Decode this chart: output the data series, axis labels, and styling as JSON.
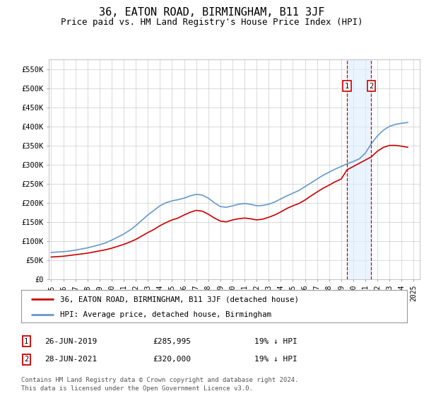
{
  "title": "36, EATON ROAD, BIRMINGHAM, B11 3JF",
  "subtitle": "Price paid vs. HM Land Registry's House Price Index (HPI)",
  "title_fontsize": 11,
  "subtitle_fontsize": 9,
  "ylim": [
    0,
    575000
  ],
  "yticks": [
    0,
    50000,
    100000,
    150000,
    200000,
    250000,
    300000,
    350000,
    400000,
    450000,
    500000,
    550000
  ],
  "ytick_labels": [
    "£0",
    "£50K",
    "£100K",
    "£150K",
    "£200K",
    "£250K",
    "£300K",
    "£350K",
    "£400K",
    "£450K",
    "£500K",
    "£550K"
  ],
  "sale1_date": "26-JUN-2019",
  "sale1_price": 285995,
  "sale1_year": 2019.48,
  "sale1_pct": "19% ↓ HPI",
  "sale2_date": "28-JUN-2021",
  "sale2_price": 320000,
  "sale2_year": 2021.49,
  "sale2_pct": "19% ↓ HPI",
  "legend1_label": "36, EATON ROAD, BIRMINGHAM, B11 3JF (detached house)",
  "legend2_label": "HPI: Average price, detached house, Birmingham",
  "footer1": "Contains HM Land Registry data © Crown copyright and database right 2024.",
  "footer2": "This data is licensed under the Open Government Licence v3.0.",
  "red_color": "#cc0000",
  "blue_color": "#6699cc",
  "shade_color": "#ddeeff",
  "bg_color": "#ffffff",
  "grid_color": "#cccccc",
  "hpi_years": [
    1995,
    1995.5,
    1996,
    1996.5,
    1997,
    1997.5,
    1998,
    1998.5,
    1999,
    1999.5,
    2000,
    2000.5,
    2001,
    2001.5,
    2002,
    2002.5,
    2003,
    2003.5,
    2004,
    2004.5,
    2005,
    2005.5,
    2006,
    2006.5,
    2007,
    2007.5,
    2008,
    2008.5,
    2009,
    2009.5,
    2010,
    2010.5,
    2011,
    2011.5,
    2012,
    2012.5,
    2013,
    2013.5,
    2014,
    2014.5,
    2015,
    2015.5,
    2016,
    2016.5,
    2017,
    2017.5,
    2018,
    2018.5,
    2019,
    2019.5,
    2020,
    2020.5,
    2021,
    2021.5,
    2022,
    2022.5,
    2023,
    2023.5,
    2024,
    2024.5
  ],
  "hpi_values": [
    70000,
    71000,
    72000,
    73500,
    76000,
    79000,
    82000,
    86000,
    90000,
    95000,
    102000,
    110000,
    118000,
    128000,
    140000,
    154000,
    168000,
    180000,
    192000,
    200000,
    205000,
    208000,
    212000,
    218000,
    222000,
    220000,
    212000,
    200000,
    190000,
    188000,
    192000,
    196000,
    198000,
    196000,
    192000,
    193000,
    196000,
    202000,
    210000,
    218000,
    225000,
    232000,
    242000,
    252000,
    262000,
    272000,
    280000,
    288000,
    295000,
    302000,
    308000,
    315000,
    330000,
    355000,
    375000,
    390000,
    400000,
    405000,
    408000,
    410000
  ],
  "red_years": [
    1995,
    1995.5,
    1996,
    1996.5,
    1997,
    1997.5,
    1998,
    1998.5,
    1999,
    1999.5,
    2000,
    2000.5,
    2001,
    2001.5,
    2002,
    2002.5,
    2003,
    2003.5,
    2004,
    2004.5,
    2005,
    2005.5,
    2006,
    2006.5,
    2007,
    2007.5,
    2008,
    2008.5,
    2009,
    2009.5,
    2010,
    2010.5,
    2011,
    2011.5,
    2012,
    2012.5,
    2013,
    2013.5,
    2014,
    2014.5,
    2015,
    2015.5,
    2016,
    2016.5,
    2017,
    2017.5,
    2018,
    2018.5,
    2019,
    2019.48,
    2021.49,
    2022,
    2022.5,
    2023,
    2023.5,
    2024,
    2024.5
  ],
  "red_values": [
    58000,
    59000,
    60000,
    62000,
    64000,
    66000,
    68000,
    71000,
    74000,
    77000,
    81000,
    86000,
    91000,
    97000,
    104000,
    113000,
    122000,
    130000,
    140000,
    148000,
    155000,
    160000,
    168000,
    175000,
    180000,
    178000,
    170000,
    160000,
    152000,
    150000,
    155000,
    158000,
    160000,
    158000,
    155000,
    157000,
    162000,
    168000,
    176000,
    185000,
    192000,
    198000,
    207000,
    218000,
    228000,
    238000,
    246000,
    255000,
    262000,
    285995,
    320000,
    335000,
    345000,
    350000,
    350000,
    348000,
    345000
  ],
  "xtick_years": [
    1995,
    1996,
    1997,
    1998,
    1999,
    2000,
    2001,
    2002,
    2003,
    2004,
    2005,
    2006,
    2007,
    2008,
    2009,
    2010,
    2011,
    2012,
    2013,
    2014,
    2015,
    2016,
    2017,
    2018,
    2019,
    2020,
    2021,
    2022,
    2023,
    2024,
    2025
  ]
}
